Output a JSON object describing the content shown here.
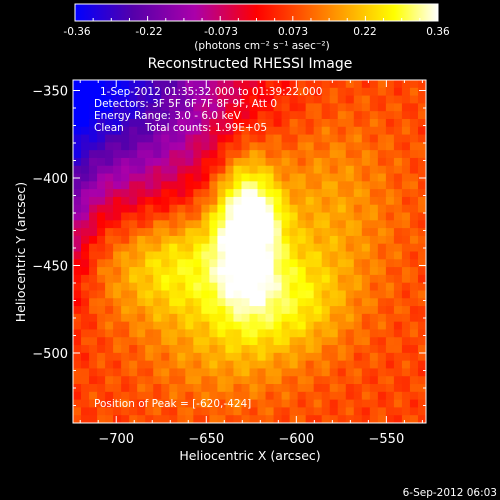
{
  "colorbar": {
    "ticks": [
      "-0.36",
      "-0.22",
      "-0.073",
      "0.073",
      "0.22",
      "0.36"
    ],
    "units": "(photons cm⁻² s⁻¹ asec⁻²)"
  },
  "info": {
    "time_range": "1-Sep-2012 01:35:32.000 to 01:39:22.000",
    "detectors": "Detectors: 3F 5F 6F 7F 8F 9F, Att 0",
    "energy_range": "Energy Range: 3.0 - 6.0 keV",
    "algorithm": "Clean",
    "total_counts": "Total counts: 1.99E+05",
    "peak_position": "Position of Peak = [-620,-424]"
  },
  "footer": {
    "date": "6-Sep-2012 06:03"
  },
  "chart_data": {
    "type": "heatmap",
    "title": "Reconstructed RHESSI Image",
    "xlabel": "Heliocentric X (arcsec)",
    "ylabel": "Heliocentric Y (arcsec)",
    "xlim": [
      -724,
      -528
    ],
    "ylim": [
      -540,
      -344
    ],
    "xticks": [
      -700,
      -650,
      -600,
      -550
    ],
    "yticks": [
      -350,
      -400,
      -450,
      -500
    ],
    "xtick_labels": [
      "−700",
      "−650",
      "−600",
      "−550"
    ],
    "ytick_labels": [
      "−350",
      "−400",
      "−450",
      "−500"
    ],
    "zlim": [
      -0.36,
      0.36
    ],
    "peak": {
      "x": -620,
      "y": -424
    },
    "colormap": [
      "#0000ff",
      "#5500aa",
      "#aa00aa",
      "#ff0000",
      "#ff8800",
      "#ffff00",
      "#ffffff"
    ]
  }
}
